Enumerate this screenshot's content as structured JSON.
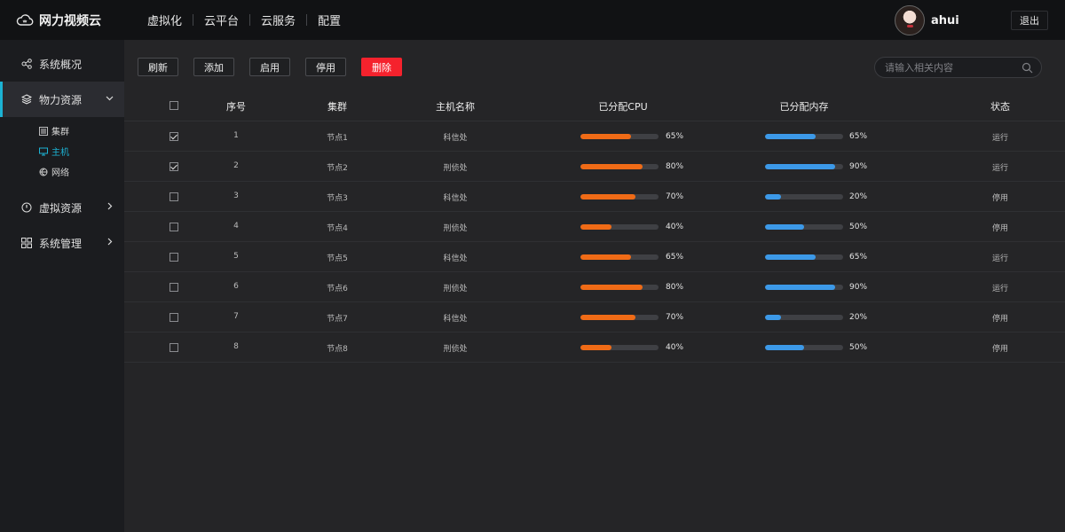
{
  "app": {
    "title": "网力视频云"
  },
  "topnav": [
    {
      "label": "虚拟化"
    },
    {
      "label": "云平台"
    },
    {
      "label": "云服务"
    },
    {
      "label": "配置"
    }
  ],
  "user": {
    "name": "ahui",
    "logout_label": "退出"
  },
  "sidebar": {
    "items": [
      {
        "label": "系统概况",
        "icon": "share-icon"
      },
      {
        "label": "物力资源",
        "icon": "layers-icon",
        "expanded": true,
        "children": [
          {
            "label": "集群",
            "icon": "list-icon"
          },
          {
            "label": "主机",
            "icon": "monitor-icon",
            "selected": true
          },
          {
            "label": "网络",
            "icon": "globe-icon"
          }
        ]
      },
      {
        "label": "虚拟资源",
        "icon": "power-icon"
      },
      {
        "label": "系统管理",
        "icon": "grid-icon"
      }
    ]
  },
  "toolbar": {
    "refresh_label": "刷新",
    "add_label": "添加",
    "enable_label": "启用",
    "disable_label": "停用",
    "delete_label": "删除"
  },
  "search": {
    "placeholder": "请输入相关内容"
  },
  "table": {
    "headers": {
      "index": "序号",
      "cluster": "集群",
      "host": "主机名称",
      "cpu": "已分配CPU",
      "mem": "已分配内存",
      "status": "状态"
    },
    "rows": [
      {
        "checked": true,
        "index": "1",
        "cluster": "节点1",
        "host": "科信处",
        "cpu": 65,
        "cpu_label": "65%",
        "mem": 65,
        "mem_label": "65%",
        "status": "运行"
      },
      {
        "checked": true,
        "index": "2",
        "cluster": "节点2",
        "host": "刑侦处",
        "cpu": 80,
        "cpu_label": "80%",
        "mem": 90,
        "mem_label": "90%",
        "status": "运行"
      },
      {
        "checked": false,
        "index": "3",
        "cluster": "节点3",
        "host": "科信处",
        "cpu": 70,
        "cpu_label": "70%",
        "mem": 20,
        "mem_label": "20%",
        "status": "停用"
      },
      {
        "checked": false,
        "index": "4",
        "cluster": "节点4",
        "host": "刑侦处",
        "cpu": 40,
        "cpu_label": "40%",
        "mem": 50,
        "mem_label": "50%",
        "status": "停用"
      },
      {
        "checked": false,
        "index": "5",
        "cluster": "节点5",
        "host": "科信处",
        "cpu": 65,
        "cpu_label": "65%",
        "mem": 65,
        "mem_label": "65%",
        "status": "运行"
      },
      {
        "checked": false,
        "index": "6",
        "cluster": "节点6",
        "host": "刑侦处",
        "cpu": 80,
        "cpu_label": "80%",
        "mem": 90,
        "mem_label": "90%",
        "status": "运行"
      },
      {
        "checked": false,
        "index": "7",
        "cluster": "节点7",
        "host": "科信处",
        "cpu": 70,
        "cpu_label": "70%",
        "mem": 20,
        "mem_label": "20%",
        "status": "停用"
      },
      {
        "checked": false,
        "index": "8",
        "cluster": "节点8",
        "host": "刑侦处",
        "cpu": 40,
        "cpu_label": "40%",
        "mem": 50,
        "mem_label": "50%",
        "status": "停用"
      }
    ]
  },
  "colors": {
    "accent": "#1cb2d3",
    "cpu_bar": "#f06b16",
    "mem_bar": "#3c99e8",
    "danger": "#f5222d"
  }
}
